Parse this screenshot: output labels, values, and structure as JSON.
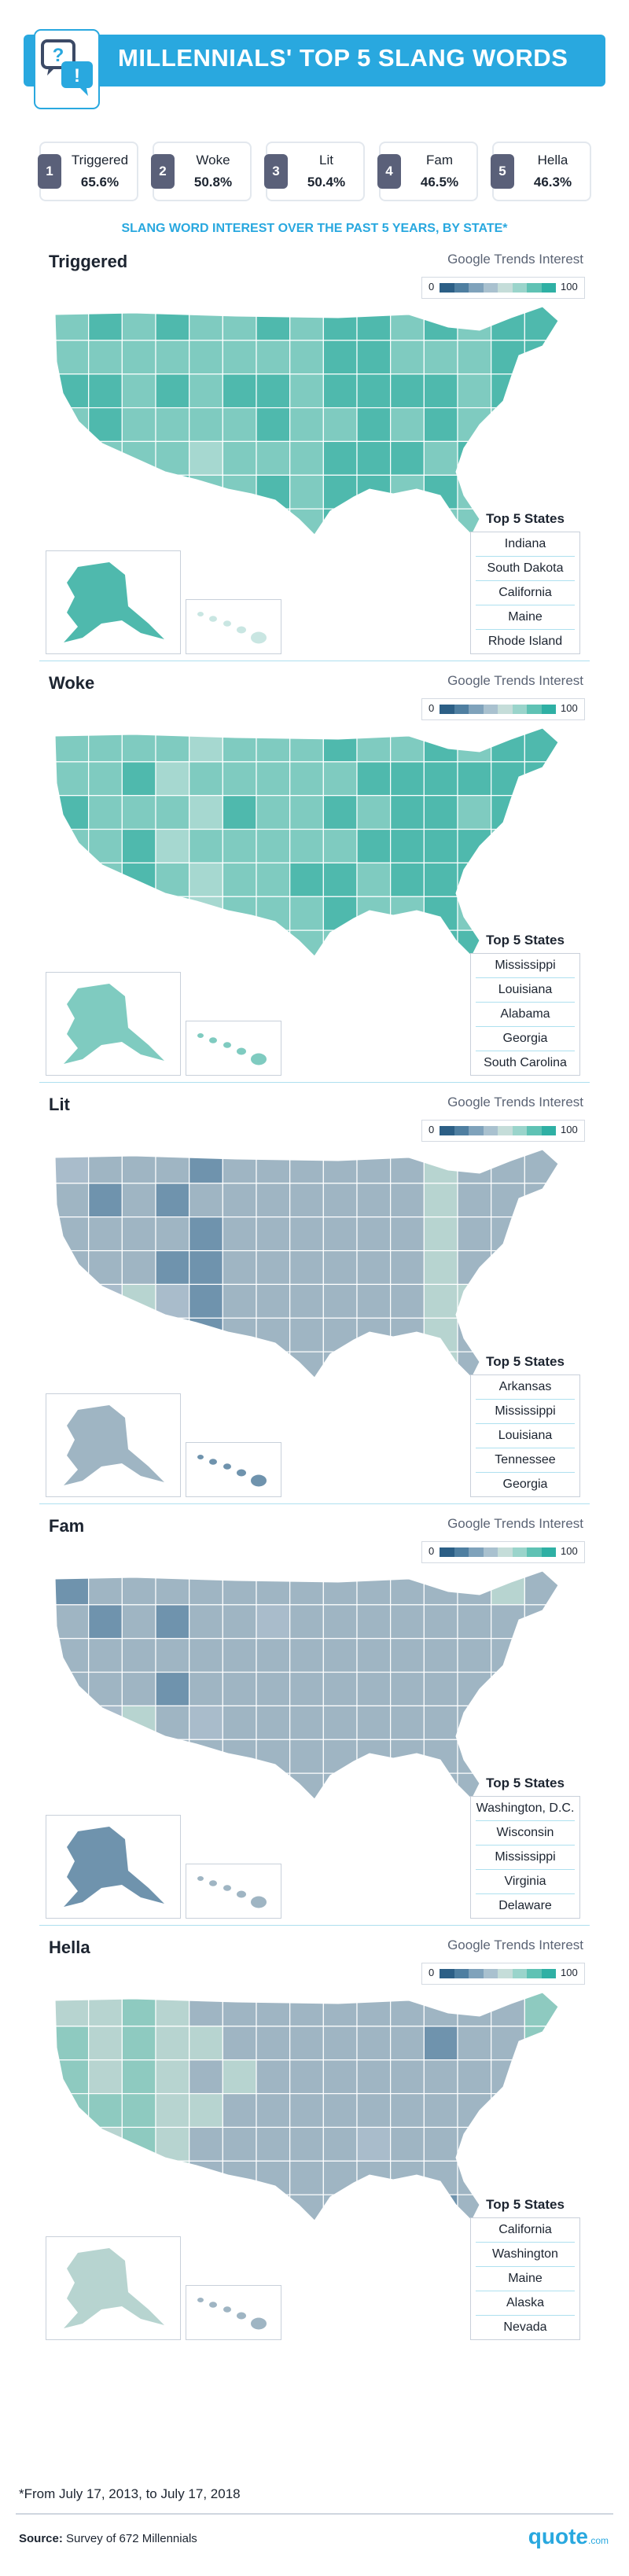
{
  "title": "MILLENNIALS' TOP 5 SLANG WORDS",
  "ranking": [
    {
      "rank": "1",
      "word": "Triggered",
      "pct": "65.6%"
    },
    {
      "rank": "2",
      "word": "Woke",
      "pct": "50.8%"
    },
    {
      "rank": "3",
      "word": "Lit",
      "pct": "50.4%"
    },
    {
      "rank": "4",
      "word": "Fam",
      "pct": "46.5%"
    },
    {
      "rank": "5",
      "word": "Hella",
      "pct": "46.3%"
    }
  ],
  "subtitle": "SLANG WORD INTEREST OVER THE PAST 5 YEARS, BY STATE*",
  "legend": {
    "label": "Google Trends Interest",
    "min": "0",
    "max": "100"
  },
  "top5_title": "Top 5 States",
  "colors": {
    "accent": "#29a8df",
    "rank_badge": "#5a6079",
    "scale": [
      "#2c5f86",
      "#4f7fa1",
      "#7fa2bb",
      "#a9c1cf",
      "#c5ddd9",
      "#9ad4cb",
      "#5fc2b4",
      "#2fb0a4"
    ]
  },
  "chart_data": [
    {
      "type": "map",
      "title": "Triggered",
      "palette": "teal",
      "levels": [
        3.2,
        3.6,
        3.0,
        3.4,
        2.8,
        3.3,
        3.5,
        3.1,
        3.7,
        4.0,
        3.4,
        3.6,
        3.3,
        3.8,
        3.9
      ],
      "alaska": 3.5,
      "hawaii": 1.0,
      "top5": [
        "Indiana",
        "South Dakota",
        "California",
        "Maine",
        "Rhode Island"
      ]
    },
    {
      "type": "map",
      "title": "Woke",
      "palette": "teal",
      "levels": [
        3.4,
        3.0,
        3.6,
        2.6,
        2.4,
        3.2,
        3.0,
        3.3,
        3.6,
        3.4,
        3.7,
        3.9,
        3.5,
        3.8,
        3.5
      ],
      "alaska": 3.0,
      "hawaii": 3.0,
      "top5": [
        "Mississippi",
        "Louisiana",
        "Alabama",
        "Georgia",
        "South Carolina"
      ]
    },
    {
      "type": "map",
      "title": "Lit",
      "palette": "mixed",
      "levels": [
        1.8,
        1.6,
        2.2,
        1.4,
        1.2,
        2.0,
        1.9,
        2.1,
        2.0,
        1.9,
        2.1,
        3.0,
        2.2,
        2.1,
        1.8
      ],
      "alaska": 1.9,
      "hawaii": 1.2,
      "top5": [
        "Arkansas",
        "Mississippi",
        "Louisiana",
        "Tennessee",
        "Georgia"
      ]
    },
    {
      "type": "map",
      "title": "Fam",
      "palette": "mixed",
      "levels": [
        1.7,
        1.6,
        2.2,
        1.5,
        1.8,
        1.9,
        1.8,
        2.0,
        1.9,
        2.1,
        2.0,
        1.9,
        2.0,
        2.3,
        2.0
      ],
      "alaska": 1.0,
      "hawaii": 2.0,
      "top5": [
        "Washington, D.C.",
        "Wisconsin",
        "Mississippi",
        "Virginia",
        "Delaware"
      ]
    },
    {
      "type": "map",
      "title": "Hella",
      "palette": "mixed",
      "levels": [
        3.8,
        3.2,
        4.0,
        3.0,
        2.4,
        2.2,
        2.0,
        1.9,
        2.0,
        1.8,
        1.9,
        1.7,
        1.9,
        2.0,
        3.6
      ],
      "alaska": 3.4,
      "hawaii": 2.0,
      "top5": [
        "California",
        "Washington",
        "Maine",
        "Alaska",
        "Nevada"
      ]
    }
  ],
  "footnote": "*From July 17, 2013,  to July 17, 2018",
  "source_label": "Source:",
  "source_text": "Survey of 672 Millennials",
  "brand": "quote",
  "brand_suffix": ".com"
}
